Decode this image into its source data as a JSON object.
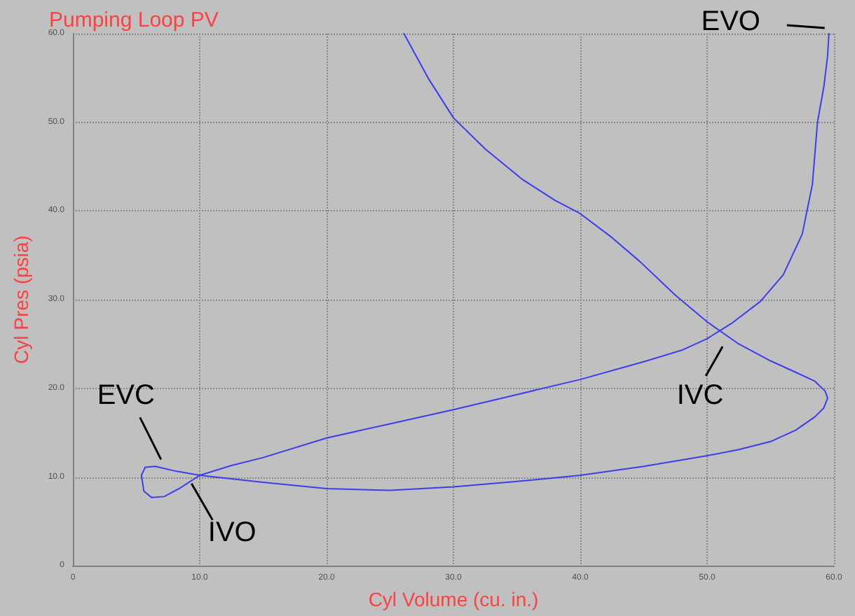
{
  "chart_data": {
    "type": "line",
    "title": "Pumping Loop PV",
    "xlabel": "Cyl Volume (cu. in.)",
    "ylabel": "Cyl Pres (psia)",
    "x": [
      26.1,
      28,
      30,
      32.5,
      35.4,
      38,
      40,
      42.5,
      44.7,
      47.5,
      50,
      52.5,
      55,
      57,
      58.5,
      59.3,
      59.5,
      59.2,
      58.5,
      57,
      55,
      52.5,
      50,
      45,
      40,
      35,
      30,
      25,
      20,
      15,
      10,
      8,
      6.5,
      5.7,
      5.4,
      5.6,
      6.2,
      7.2,
      8.5,
      10,
      12.5,
      15,
      20,
      25,
      30,
      35,
      40,
      45,
      48,
      50,
      52,
      54.2,
      56,
      57.5,
      58.3,
      58.7,
      59.2,
      59.5,
      59.6
    ],
    "series": [
      {
        "color": "#3c3cf0",
        "values": [
          60,
          55,
          50.5,
          47,
          43.6,
          41.2,
          39.7,
          37,
          34.3,
          30.5,
          27.5,
          25,
          23.1,
          21.8,
          20.8,
          19.7,
          18.9,
          17.8,
          16.8,
          15.3,
          14.0,
          13.1,
          12.4,
          11.2,
          10.2,
          9.5,
          8.9,
          8.5,
          8.7,
          9.4,
          10.2,
          10.7,
          11.2,
          11.1,
          10.2,
          8.4,
          7.7,
          7.8,
          8.8,
          10.2,
          11.3,
          12.2,
          14.4,
          16,
          17.6,
          19.3,
          21.0,
          23,
          24.3,
          25.6,
          27.4,
          29.8,
          32.8,
          37.4,
          43,
          50,
          54,
          57.5,
          60
        ]
      }
    ],
    "xlim": [
      0,
      60
    ],
    "ylim": [
      0,
      60
    ],
    "xticks": [
      {
        "value": 0,
        "label": "0"
      },
      {
        "value": 10,
        "label": "10.0"
      },
      {
        "value": 20,
        "label": "20.0"
      },
      {
        "value": 30,
        "label": "30.0"
      },
      {
        "value": 40,
        "label": "40.0"
      },
      {
        "value": 50,
        "label": "50.0"
      },
      {
        "value": 60,
        "label": "60.0"
      }
    ],
    "yticks": [
      {
        "value": 0,
        "label": "0"
      },
      {
        "value": 10,
        "label": "10.0"
      },
      {
        "value": 20,
        "label": "20.0"
      },
      {
        "value": 30,
        "label": "30.0"
      },
      {
        "value": 40,
        "label": "40.0"
      },
      {
        "value": 50,
        "label": "50.0"
      },
      {
        "value": 60,
        "label": "60.0"
      }
    ],
    "annotations": [
      {
        "text": "EVO",
        "x": 59.6,
        "y": 60
      },
      {
        "text": "EVC",
        "x": 7.5,
        "y": 11.2
      },
      {
        "text": "IVO",
        "x": 8.8,
        "y": 9.9
      },
      {
        "text": "IVC",
        "x": 51,
        "y": 25.5
      }
    ],
    "grid": true,
    "marker": "none",
    "line_style": "solid"
  }
}
